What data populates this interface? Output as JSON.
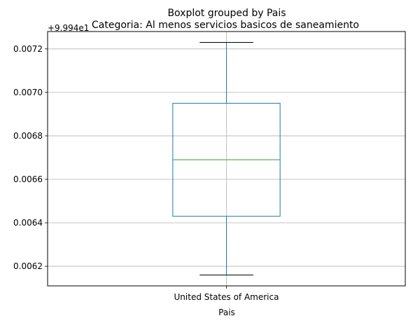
{
  "chart_data": {
    "type": "box",
    "suptitle": "Boxplot grouped by Pais",
    "title": "Categoria: Al menos servicios basicos de saneamiento",
    "xlabel": "Pais",
    "ylabel": "",
    "offset_label": "+9.994e1",
    "categories": [
      "United States of America"
    ],
    "boxes": [
      {
        "category": "United States of America",
        "whisker_low": 0.00616,
        "q1": 0.00643,
        "median": 0.00669,
        "q3": 0.00695,
        "whisker_high": 0.00723
      }
    ],
    "ylim": [
      0.00611,
      0.00728
    ],
    "yticks": [
      0.0062,
      0.0064,
      0.0066,
      0.0068,
      0.007,
      0.0072
    ],
    "ytick_labels": [
      "0.0062",
      "0.0064",
      "0.0066",
      "0.0068",
      "0.0070",
      "0.0072"
    ],
    "grid": true,
    "colors": {
      "box": "#1f77b4",
      "median": "#2ca02c",
      "grid": "#b0b0b0",
      "axis": "#000000"
    }
  }
}
